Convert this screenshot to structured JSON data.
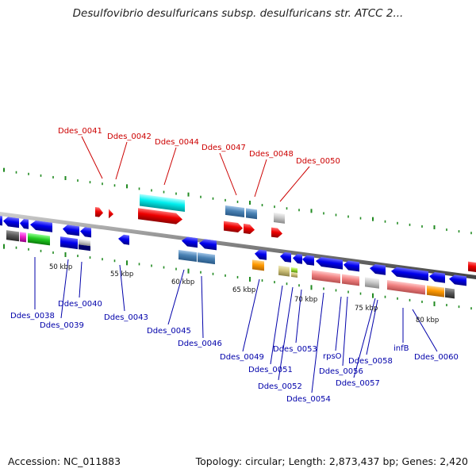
{
  "title": "Desulfovibrio desulfuricans subsp. desulfuricans str. ATCC 2...",
  "footer": {
    "accession": "Accession: NC_011883",
    "topology": "Topology: circular; Length: 2,873,437 bp; Genes: 2,420"
  },
  "colors": {
    "top_label": "#cc0000",
    "bottom_label": "#0000aa",
    "tick_green": "#228b22"
  },
  "scale_labels": [
    "50 kbp",
    "55 kbp",
    "60 kbp",
    "65 kbp",
    "70 kbp",
    "75 kbp",
    "80 kbp"
  ],
  "top_labels": [
    "Ddes_0041",
    "Ddes_0042",
    "Ddes_0044",
    "Ddes_0047",
    "Ddes_0048",
    "Ddes_0050"
  ],
  "bottom_labels": [
    "Ddes_0038",
    "Ddes_0039",
    "Ddes_0040",
    "Ddes_0043",
    "Ddes_0045",
    "Ddes_0046",
    "Ddes_0049",
    "Ddes_0051",
    "Ddes_0052",
    "Ddes_0053",
    "Ddes_0054",
    "rpsO",
    "Ddes_0056",
    "Ddes_0057",
    "Ddes_0058",
    "infB",
    "Ddes_0060"
  ]
}
